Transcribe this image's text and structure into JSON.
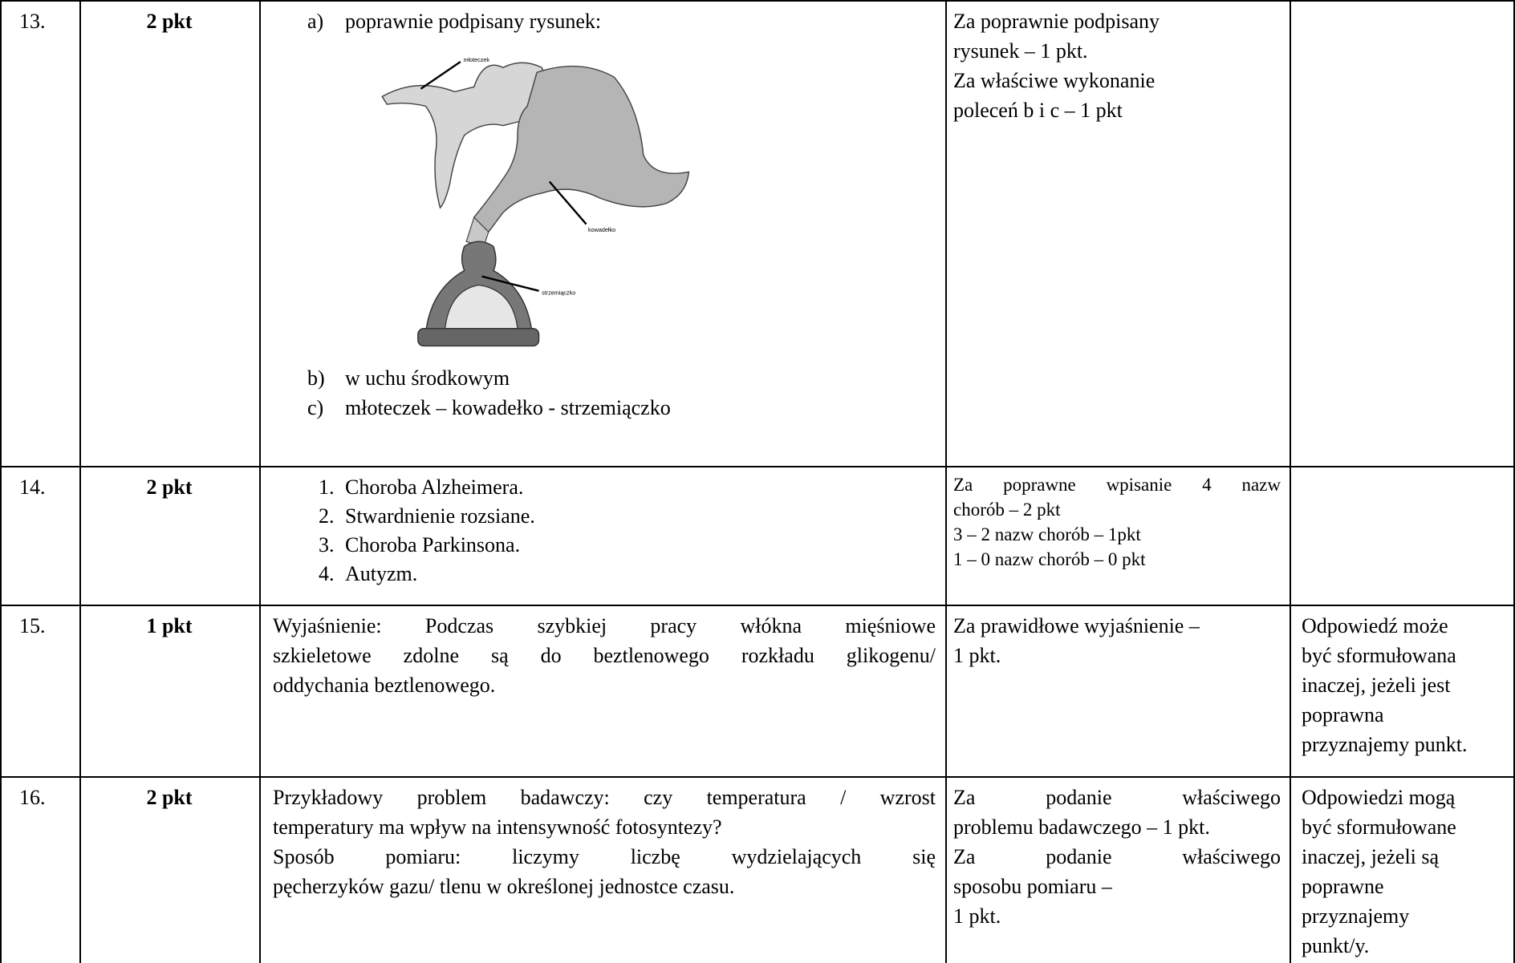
{
  "table": {
    "rows": [
      {
        "number": "13.",
        "points": "2 pkt",
        "answer": {
          "items": [
            {
              "marker": "a)",
              "text": "poprawnie podpisany rysunek:"
            },
            {
              "marker": "b)",
              "text": "w uchu środkowym"
            },
            {
              "marker": "c)",
              "text": "młoteczek – kowadełko - strzemiączko"
            }
          ],
          "figure_labels": [
            "młoteczek",
            "kowadełko",
            "strzemiączko"
          ]
        },
        "criteria": [
          {
            "text": "Za poprawnie podpisany"
          },
          {
            "text": "rysunek – 1 pkt."
          },
          {
            "text": "Za właściwe wykonanie"
          },
          {
            "text": "poleceń b i c – 1 pkt"
          }
        ]
      },
      {
        "number": "14.",
        "points": "2  pkt",
        "answer": {
          "items": [
            {
              "marker": "1.",
              "text": "Choroba Alzheimera."
            },
            {
              "marker": "2.",
              "text": "Stwardnienie rozsiane."
            },
            {
              "marker": "3.",
              "text": "Choroba Parkinsona."
            },
            {
              "marker": "4.",
              "text": "Autyzm."
            }
          ]
        },
        "criteria": [
          {
            "text": "Za poprawne wpisanie 4 nazw",
            "justify": true
          },
          {
            "text": "chorób – 2 pkt"
          },
          {
            "text": "3 – 2 nazw chorób – 1pkt"
          },
          {
            "text": "1 – 0 nazw chorób – 0 pkt"
          }
        ]
      },
      {
        "number": "15.",
        "points": "1 pkt",
        "answer": {
          "lines": [
            {
              "text": "Wyjaśnienie:  Podczas szybkiej pracy włókna mięśniowe",
              "justify": true
            },
            {
              "text": "szkieletowe  zdolne są do beztlenowego rozkładu glikogenu/",
              "justify": true
            },
            {
              "text": "oddychania beztlenowego."
            }
          ]
        },
        "criteria": [
          {
            "text": "Za prawidłowe wyjaśnienie –"
          },
          {
            "text": "1 pkt."
          }
        ],
        "notes": [
          "Odpowiedź może",
          "być sformułowana",
          "inaczej, jeżeli jest",
          "poprawna",
          "przyznajemy punkt."
        ]
      },
      {
        "number": "16.",
        "points": "2 pkt",
        "answer": {
          "lines": [
            {
              "text": "Przykładowy problem badawczy: czy temperatura / wzrost",
              "justify": true
            },
            {
              "text": "temperatury ma wpływ na intensywność fotosyntezy?"
            },
            {
              "text": "Sposób pomiaru: liczymy liczbę wydzielających się",
              "justify": true
            },
            {
              "text": "pęcherzyków gazu/ tlenu w określonej jednostce czasu."
            }
          ]
        },
        "criteria": [
          {
            "text": "Za podanie właściwego",
            "justify": true
          },
          {
            "text": "problemu badawczego – 1 pkt."
          },
          {
            "text": "Za podanie właściwego",
            "justify": true
          },
          {
            "text": "sposobu pomiaru –"
          },
          {
            "text": "1 pkt."
          }
        ],
        "notes": [
          "Odpowiedzi mogą",
          "być sformułowane",
          "inaczej, jeżeli są",
          "poprawne",
          "przyznajemy",
          "punkt/y."
        ]
      }
    ]
  }
}
